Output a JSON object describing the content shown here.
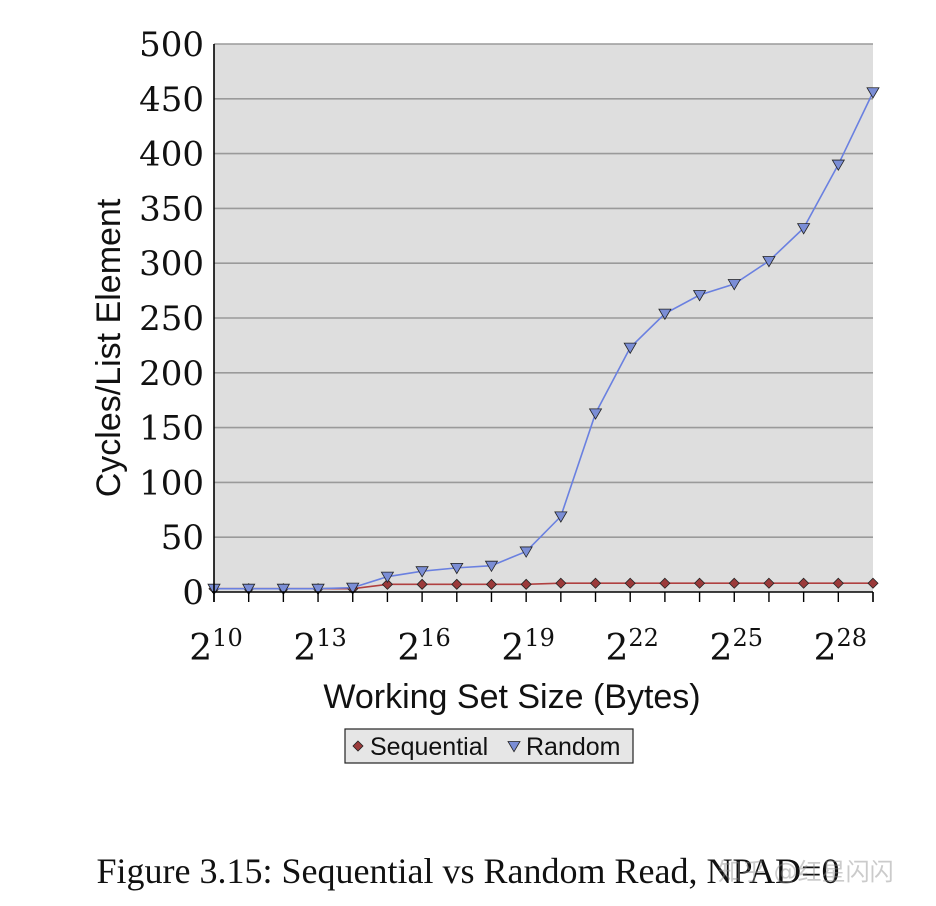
{
  "chart_data": {
    "type": "line",
    "xlabel": "Working Set Size (Bytes)",
    "ylabel": "Cycles/List Element",
    "x_scale": "log2",
    "x": [
      10,
      11,
      12,
      13,
      14,
      15,
      16,
      17,
      18,
      19,
      20,
      21,
      22,
      23,
      24,
      25,
      26,
      27,
      28,
      29
    ],
    "x_ticks": [
      10,
      13,
      16,
      19,
      22,
      25,
      28
    ],
    "x_tick_base": "2",
    "xlim": [
      10,
      29
    ],
    "ylim": [
      0,
      500
    ],
    "y_ticks": [
      0,
      50,
      100,
      150,
      200,
      250,
      300,
      350,
      400,
      450,
      500
    ],
    "grid": true,
    "legend_placement": "bottom-center",
    "series": [
      {
        "name": "Sequential",
        "marker": "diamond",
        "color": "#9b3a3a",
        "line_color": "#b04040",
        "values": [
          3,
          3,
          3,
          3,
          3,
          7,
          7,
          7,
          7,
          7,
          8,
          8,
          8,
          8,
          8,
          8,
          8,
          8,
          8,
          8
        ]
      },
      {
        "name": "Random",
        "marker": "triangle-down",
        "color": "#7b8ed6",
        "line_color": "#6a80e0",
        "values": [
          3,
          3,
          3,
          3,
          4,
          14,
          19,
          22,
          24,
          37,
          69,
          163,
          223,
          254,
          271,
          281,
          302,
          332,
          390,
          456
        ]
      }
    ]
  },
  "caption": "Figure 3.15: Sequential vs Random Read, NPAD=0",
  "watermark": "知乎 @红星闪闪",
  "colors": {
    "plot_background": "#dedede",
    "gridline": "#9a9a9a",
    "axis": "#000000"
  }
}
